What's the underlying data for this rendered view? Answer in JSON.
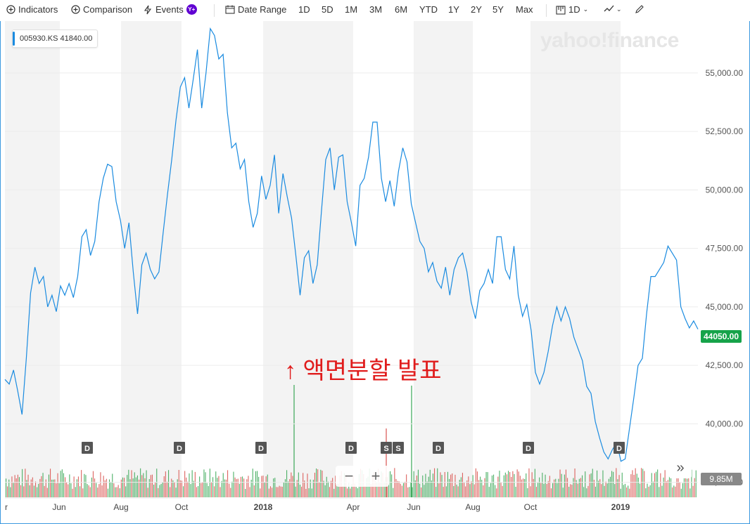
{
  "toolbar": {
    "indicators": "Indicators",
    "comparison": "Comparison",
    "events": "Events",
    "events_badge": "Y+",
    "date_range": "Date Range",
    "ranges": [
      "1D",
      "5D",
      "1M",
      "3M",
      "6M",
      "YTD",
      "1Y",
      "2Y",
      "5Y",
      "Max"
    ],
    "interval": "1D"
  },
  "ticker_label": "005930.KS",
  "ticker_value": "41840.00",
  "logo_text": "yahoo!finance",
  "annotation": "↑ 액면분할 발표",
  "current_price": "44050.00",
  "volume_label": "9.85M",
  "colors": {
    "line": "#1a8be0",
    "up": "#3aa757",
    "down": "#d9534f",
    "price_badge": "#16a34a"
  },
  "chart_data": {
    "type": "line",
    "x_ticks": [
      "r",
      "Jun",
      "Aug",
      "Oct",
      "2018",
      "Apr",
      "Jun",
      "Aug",
      "Oct",
      "2019"
    ],
    "y_ticks": [
      37500,
      40000,
      42500,
      45000,
      47500,
      50000,
      52500,
      55000
    ],
    "ylim": [
      37100,
      57100
    ],
    "series": [
      {
        "values": [
          41900,
          41700,
          42300,
          41400,
          40400,
          42800,
          45600,
          46700,
          46000,
          46300,
          45000,
          45500,
          44800,
          45900,
          45500,
          46000,
          45400,
          46300,
          48000,
          48300,
          47200,
          47800,
          49500,
          50500,
          51100,
          51000,
          49500,
          48700,
          47500,
          48600,
          46500,
          44700,
          46800,
          47300,
          46600,
          46200,
          46500,
          48200,
          49800,
          51300,
          53000,
          54400,
          54800,
          53500,
          54700,
          56000,
          53500,
          55000,
          56900,
          56600,
          55600,
          55800,
          53300,
          51800,
          52000,
          50900,
          51300,
          49500,
          48400,
          49000,
          50600,
          49600,
          50200,
          51500,
          49000,
          50700,
          49700,
          48800,
          47200,
          45500,
          47100,
          47400,
          46000,
          46800,
          49100,
          51300,
          51800,
          50000,
          51400,
          51500,
          49500,
          48600,
          47600,
          50200,
          50500,
          51400,
          52900,
          52900,
          50500,
          49500,
          50400,
          49300,
          50800,
          51800,
          51200,
          49400,
          48600,
          47800,
          47500,
          46500,
          46900,
          46100,
          45800,
          46700,
          45500,
          46600,
          47100,
          47300,
          46500,
          45200,
          44500,
          45700,
          46000,
          46600,
          46000,
          48000,
          48000,
          46600,
          46200,
          47600,
          45500,
          44600,
          45100,
          44000,
          42200,
          41700,
          42200,
          43100,
          44200,
          45000,
          44400,
          45000,
          44500,
          43700,
          43200,
          42700,
          41600,
          41300,
          40100,
          39400,
          38800,
          38500,
          38900,
          39200,
          38400,
          38500,
          39800,
          41100,
          42500,
          42800,
          44700,
          46300,
          46300,
          46600,
          46900,
          47600,
          47300,
          47000,
          45000,
          44500,
          44100,
          44400,
          44050
        ]
      }
    ]
  }
}
